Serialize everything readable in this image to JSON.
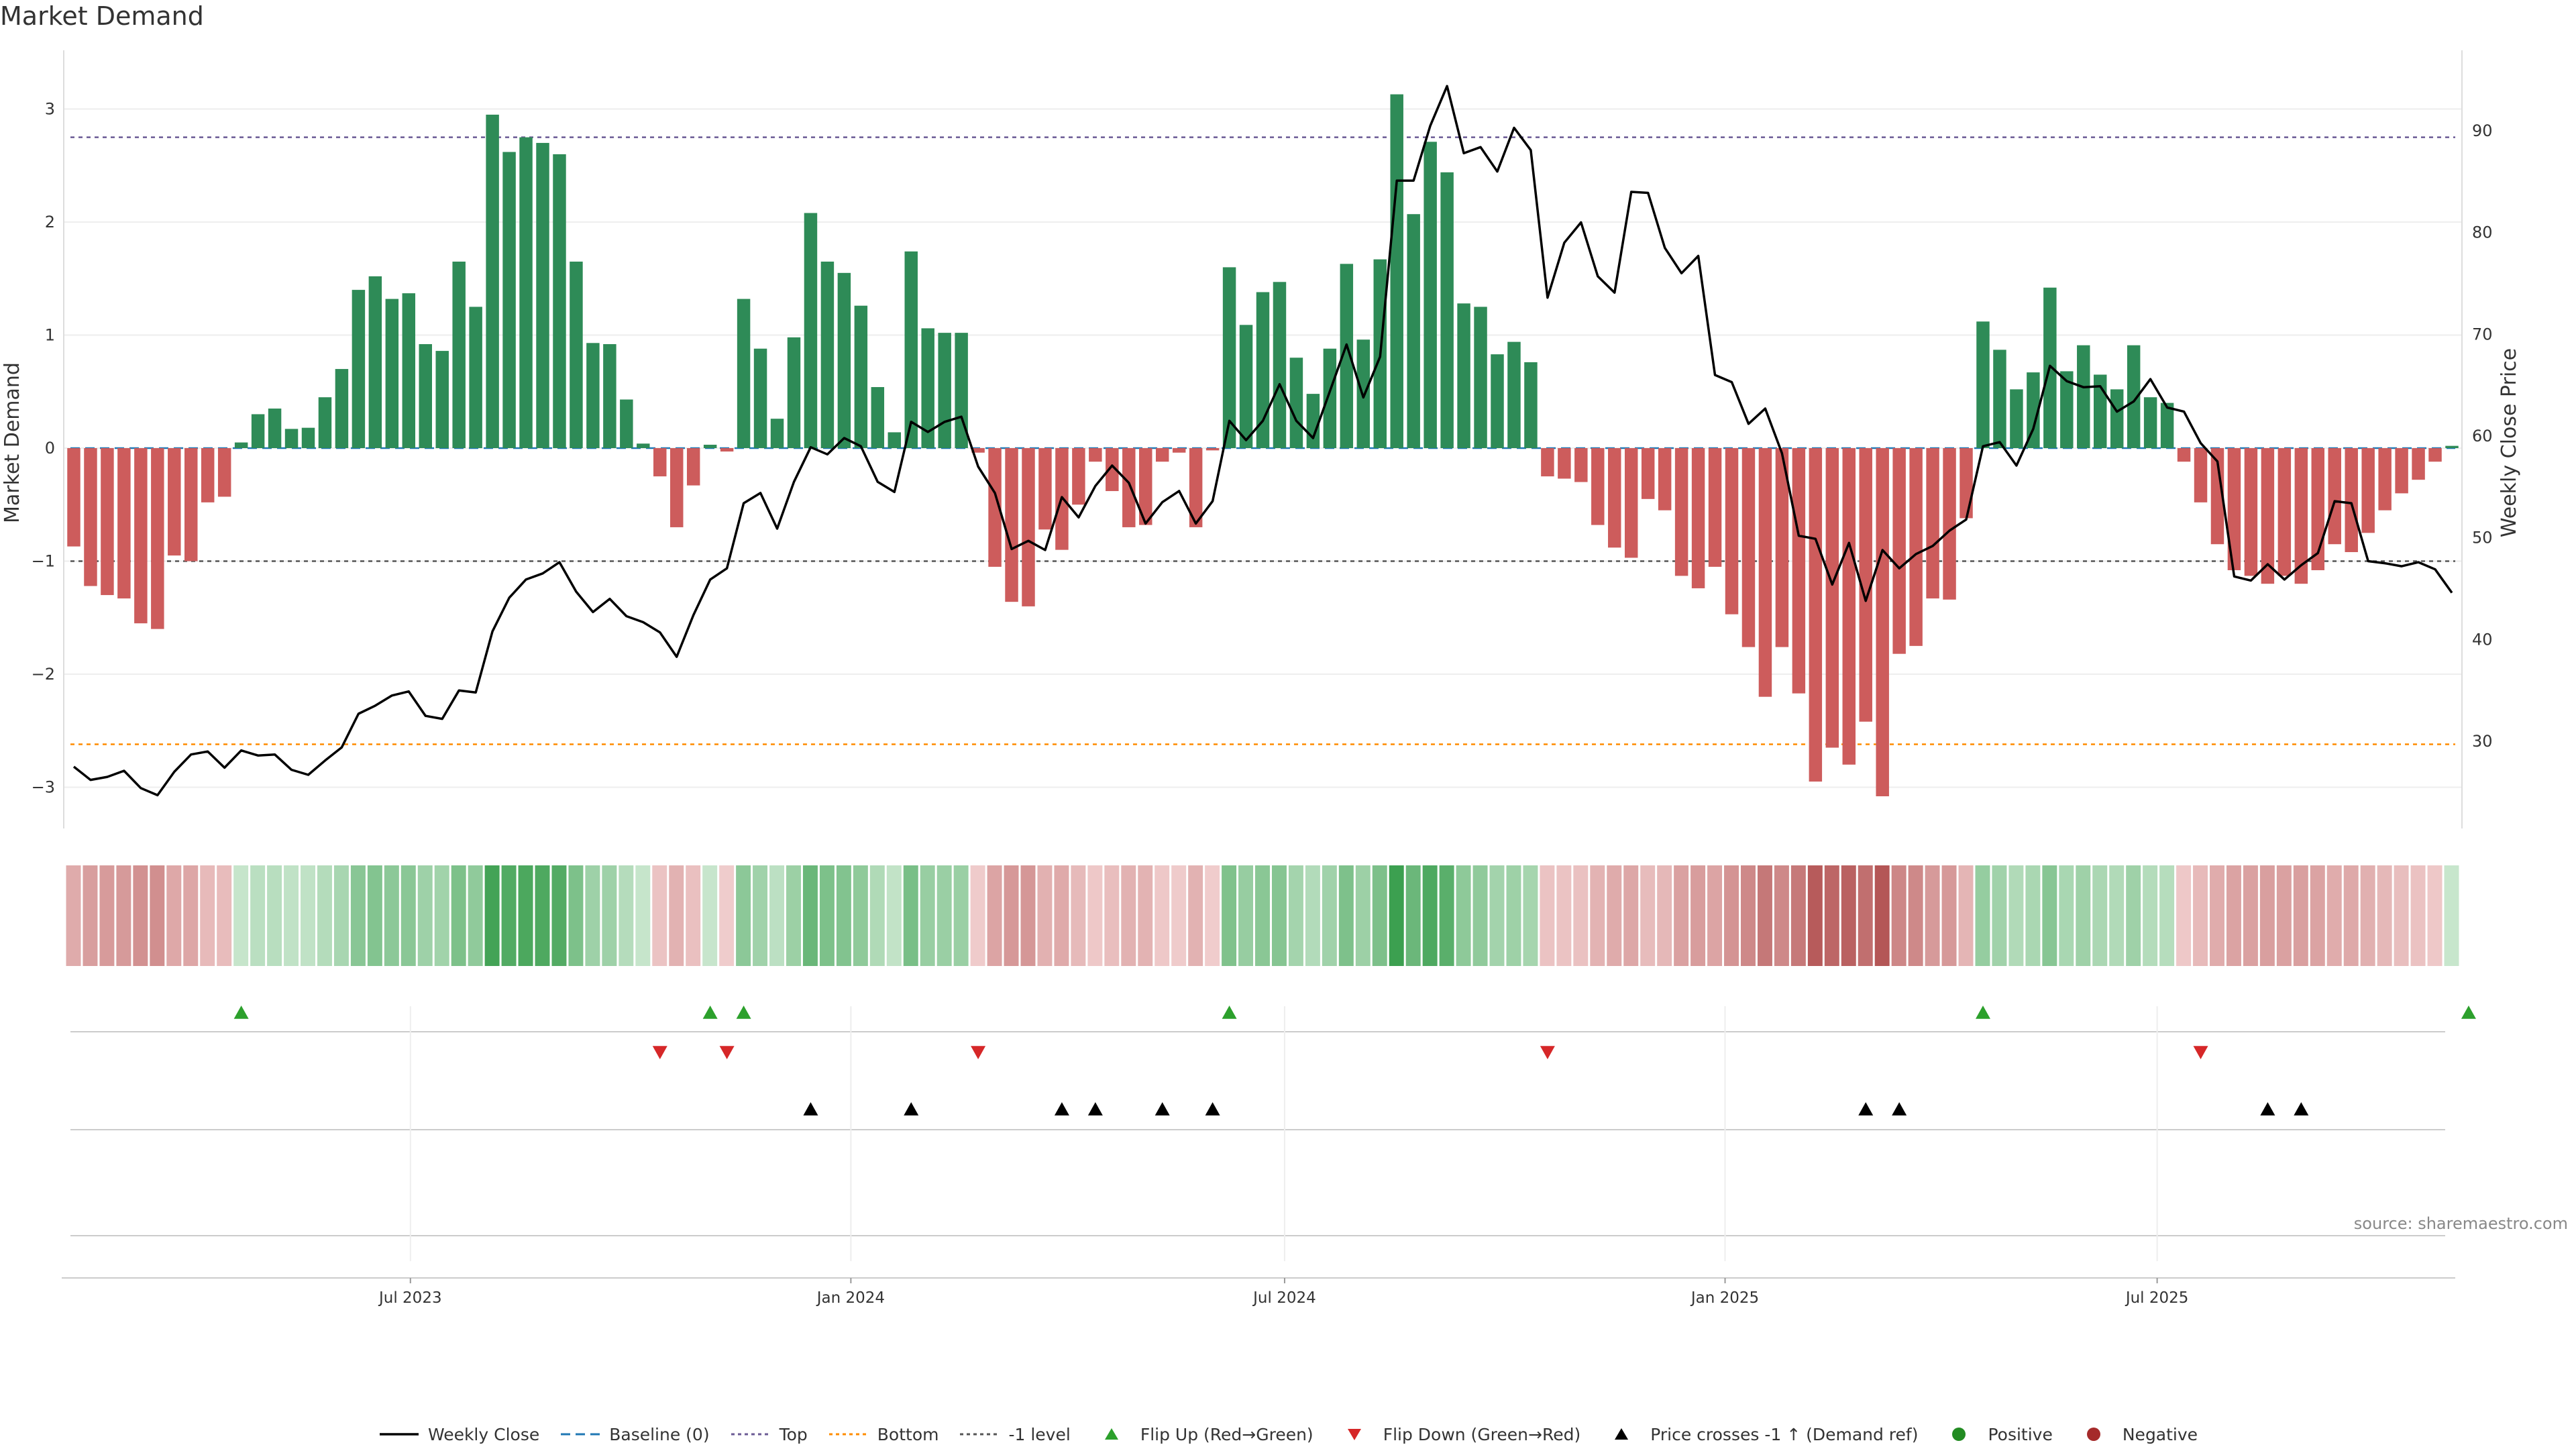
{
  "title": "Market Demand",
  "source": "source: sharemaestro.com",
  "colors": {
    "positive": "#2e8b57",
    "negative": "#cd5c5c",
    "price": "#000000",
    "top": "#6b5b95",
    "bottom": "#ff8c00",
    "minus1": "#555555",
    "baseline": "#1f77b4",
    "flip_up": "#2ca02c",
    "flip_down": "#d62728",
    "cross": "#000000",
    "pos_dot": "#228b22",
    "neg_dot": "#a52a2a"
  },
  "legend": [
    {
      "label": "Weekly Close",
      "kind": "line",
      "color": "#000000",
      "icon": "solid-line"
    },
    {
      "label": "Baseline (0)",
      "kind": "dash",
      "color": "#1f77b4",
      "icon": "dashed-line"
    },
    {
      "label": "Top",
      "kind": "dot",
      "color": "#6b5b95",
      "icon": "dotted-line"
    },
    {
      "label": "Bottom",
      "kind": "dot",
      "color": "#ff8c00",
      "icon": "dotted-line"
    },
    {
      "label": "-1 level",
      "kind": "dot",
      "color": "#555555",
      "icon": "dotted-line"
    },
    {
      "label": "Flip Up (Red→Green)",
      "kind": "tri-up",
      "color": "#2ca02c",
      "icon": "triangle-up"
    },
    {
      "label": "Flip Down (Green→Red)",
      "kind": "tri-down",
      "color": "#d62728",
      "icon": "triangle-down"
    },
    {
      "label": "Price crosses -1 ↑ (Demand ref)",
      "kind": "tri-up",
      "color": "#000000",
      "icon": "triangle-up"
    },
    {
      "label": "Positive",
      "kind": "circle",
      "color": "#228b22",
      "icon": "circle"
    },
    {
      "label": "Negative",
      "kind": "circle",
      "color": "#a52a2a",
      "icon": "circle"
    }
  ],
  "chart_data": {
    "type": "bar",
    "title": "Market Demand",
    "ylabel": "Market Demand",
    "y2label": "Weekly Close Price",
    "ylim": [
      -3.45,
      3.45
    ],
    "y2lim": [
      22.5,
      97.5
    ],
    "yticks": [
      -3,
      -2,
      -1,
      0,
      1,
      2,
      3
    ],
    "ytick_labels": [
      "−3",
      "−2",
      "−1",
      "0",
      "1",
      "2",
      "3"
    ],
    "y2ticks": [
      30,
      40,
      50,
      60,
      70,
      80,
      90
    ],
    "levels": {
      "top": 2.75,
      "bottom": -2.62,
      "minus1": -1
    },
    "x_start_week": 0,
    "x_date_ticks": [
      {
        "label": "Jul 2023",
        "week": 20.1
      },
      {
        "label": "Jan 2024",
        "week": 46.4
      },
      {
        "label": "Jul 2024",
        "week": 72.3
      },
      {
        "label": "Jan 2025",
        "week": 98.6
      },
      {
        "label": "Jul 2025",
        "week": 124.4
      }
    ],
    "demand": [
      -0.87,
      -1.22,
      -1.3,
      -1.33,
      -1.55,
      -1.6,
      -0.95,
      -1.0,
      -0.48,
      -0.43,
      0.05,
      0.3,
      0.35,
      0.17,
      0.18,
      0.45,
      0.7,
      1.4,
      1.52,
      1.32,
      1.37,
      0.92,
      0.86,
      1.65,
      1.25,
      2.95,
      2.62,
      2.75,
      2.7,
      2.6,
      1.65,
      0.93,
      0.92,
      0.43,
      0.04,
      -0.25,
      -0.7,
      -0.33,
      0.03,
      -0.03,
      1.32,
      0.88,
      0.26,
      0.98,
      2.08,
      1.65,
      1.55,
      1.26,
      0.54,
      0.14,
      1.74,
      1.06,
      1.02,
      1.02,
      -0.04,
      -1.05,
      -1.36,
      -1.4,
      -0.72,
      -0.9,
      -0.5,
      -0.12,
      -0.38,
      -0.7,
      -0.68,
      -0.12,
      -0.04,
      -0.7,
      -0.02,
      1.6,
      1.09,
      1.38,
      1.47,
      0.8,
      0.48,
      0.88,
      1.63,
      0.96,
      1.67,
      3.13,
      2.07,
      2.71,
      2.44,
      1.28,
      1.25,
      0.83,
      0.94,
      0.76,
      -0.25,
      -0.27,
      -0.3,
      -0.68,
      -0.88,
      -0.97,
      -0.45,
      -0.55,
      -1.13,
      -1.24,
      -1.05,
      -1.47,
      -1.76,
      -2.2,
      -1.76,
      -2.17,
      -2.95,
      -2.65,
      -2.8,
      -2.42,
      -3.08,
      -1.82,
      -1.75,
      -1.33,
      -1.34,
      -0.62,
      1.12,
      0.87,
      0.52,
      0.67,
      1.42,
      0.68,
      0.91,
      0.65,
      0.52,
      0.91,
      0.45,
      0.4,
      -0.12,
      -0.48,
      -0.85,
      -1.08,
      -1.13,
      -1.2,
      -1.13,
      -1.2,
      -1.08,
      -0.85,
      -0.92,
      -0.75,
      -0.55,
      -0.4,
      -0.28,
      -0.12,
      0.02
    ],
    "weekly_close": [
      27.5,
      26.2,
      26.5,
      27.1,
      25.4,
      24.7,
      27.0,
      28.7,
      29.0,
      27.4,
      29.1,
      28.6,
      28.7,
      27.2,
      26.7,
      28.1,
      29.4,
      32.7,
      33.5,
      34.5,
      34.9,
      32.5,
      32.2,
      35.0,
      34.8,
      40.8,
      44.1,
      45.9,
      46.5,
      47.6,
      44.7,
      42.7,
      44.0,
      42.3,
      41.7,
      40.7,
      38.3,
      42.4,
      45.9,
      47.0,
      53.4,
      54.4,
      50.9,
      55.5,
      58.9,
      58.2,
      59.8,
      59.0,
      55.5,
      54.5,
      61.4,
      60.4,
      61.4,
      61.9,
      57.0,
      54.4,
      48.9,
      49.7,
      48.8,
      54.0,
      52.0,
      55.1,
      57.1,
      55.4,
      51.4,
      53.5,
      54.6,
      51.4,
      53.6,
      61.5,
      59.6,
      61.5,
      65.1,
      61.5,
      59.8,
      64.4,
      69.0,
      63.8,
      67.8,
      85.1,
      85.1,
      90.5,
      94.4,
      87.8,
      88.4,
      86.0,
      90.3,
      88.1,
      73.6,
      79.0,
      81.0,
      75.7,
      74.1,
      84.0,
      83.9,
      78.5,
      76.0,
      77.7,
      66.0,
      65.3,
      61.2,
      62.7,
      58.3,
      50.2,
      49.9,
      45.4,
      49.5,
      43.8,
      48.8,
      47.0,
      48.4,
      49.2,
      50.7,
      51.8,
      59.0,
      59.4,
      57.1,
      60.7,
      66.9,
      65.4,
      64.8,
      64.9,
      62.4,
      63.4,
      65.6,
      62.8,
      62.4,
      59.3,
      57.5,
      46.2,
      45.8,
      47.4,
      45.9,
      47.3,
      48.5,
      53.6,
      53.4,
      47.7,
      47.5,
      47.2,
      47.6,
      46.9,
      44.6
    ],
    "flip_up_weeks": [
      10,
      38,
      40,
      69,
      114,
      143
    ],
    "flip_down_weeks": [
      35,
      39,
      54,
      88,
      127
    ],
    "cross_weeks": [
      44,
      50,
      59,
      61,
      65,
      68,
      107,
      109,
      131,
      133
    ]
  }
}
